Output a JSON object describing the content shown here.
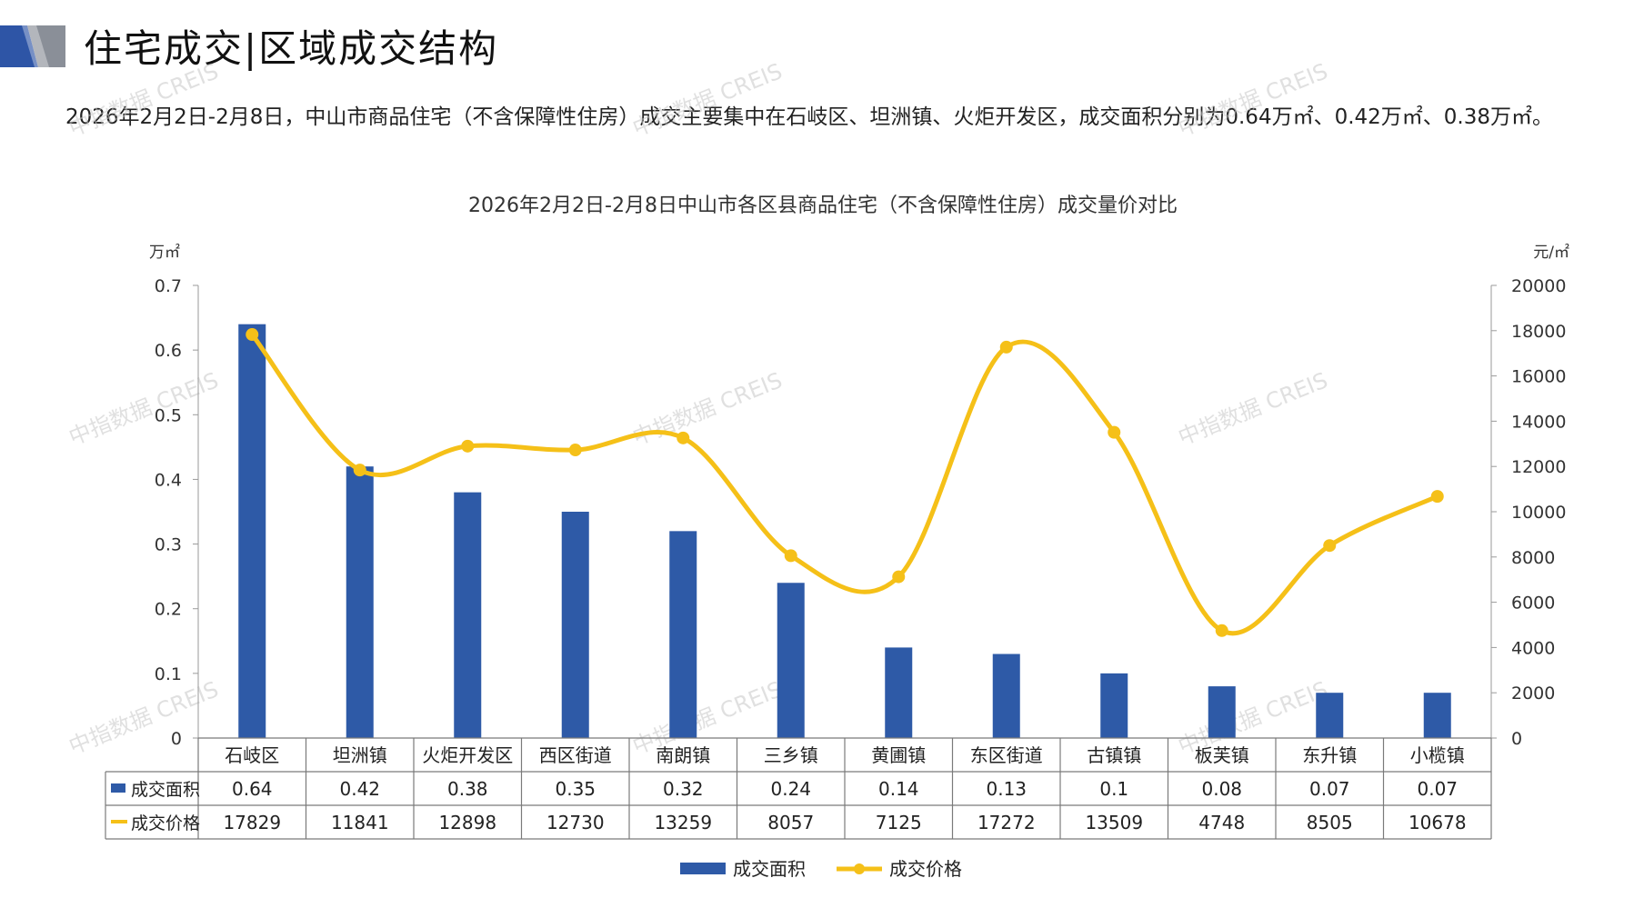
{
  "header": {
    "title": "住宅成交|区域成交结构"
  },
  "summary": "2026年2月2日-2月8日，中山市商品住宅（不含保障性住房）成交主要集中在石岐区、坦洲镇、火炬开发区，成交面积分别为0.64万㎡、0.42万㎡、0.38万㎡。",
  "watermark": "中指数据 CREIS",
  "colors": {
    "bar": "#2E5AA7",
    "line": "#F5C018",
    "logo_blue": "#2E55A6",
    "logo_gray": "#8A8F98"
  },
  "chart_data": {
    "type": "bar",
    "title": "2026年2月2日-2月8日中山市各区县商品住宅（不含保障性住房）成交量价对比",
    "ylabel_left": "万㎡",
    "ylabel_right": "元/㎡",
    "ylim_left": [
      0,
      0.7
    ],
    "ylim_right": [
      0,
      20000
    ],
    "yticks_left": [
      "0.7",
      "0.6",
      "0.5",
      "0.4",
      "0.3",
      "0.2",
      "0.1",
      "0"
    ],
    "yticks_right": [
      "20000",
      "18000",
      "16000",
      "14000",
      "12000",
      "10000",
      "8000",
      "6000",
      "4000",
      "2000",
      "0"
    ],
    "categories": [
      "石岐区",
      "坦洲镇",
      "火炬开发区",
      "西区街道",
      "南朗镇",
      "三乡镇",
      "黄圃镇",
      "东区街道",
      "古镇镇",
      "板芙镇",
      "东升镇",
      "小榄镇"
    ],
    "series": [
      {
        "name": "成交面积",
        "type": "bar",
        "axis": "left",
        "values": [
          0.64,
          0.42,
          0.38,
          0.35,
          0.32,
          0.24,
          0.14,
          0.13,
          0.1,
          0.08,
          0.07,
          0.07
        ],
        "labels": [
          "0.64",
          "0.42",
          "0.38",
          "0.35",
          "0.32",
          "0.24",
          "0.14",
          "0.13",
          "0.1",
          "0.08",
          "0.07",
          "0.07"
        ]
      },
      {
        "name": "成交价格",
        "type": "line",
        "axis": "right",
        "smooth": true,
        "values": [
          17829,
          11841,
          12898,
          12730,
          13259,
          8057,
          7125,
          17272,
          13509,
          4748,
          8505,
          10678
        ],
        "labels": [
          "17829",
          "11841",
          "12898",
          "12730",
          "13259",
          "8057",
          "7125",
          "17272",
          "13509",
          "4748",
          "8505",
          "10678"
        ]
      }
    ],
    "legend_position": "bottom-center",
    "grid": false
  }
}
